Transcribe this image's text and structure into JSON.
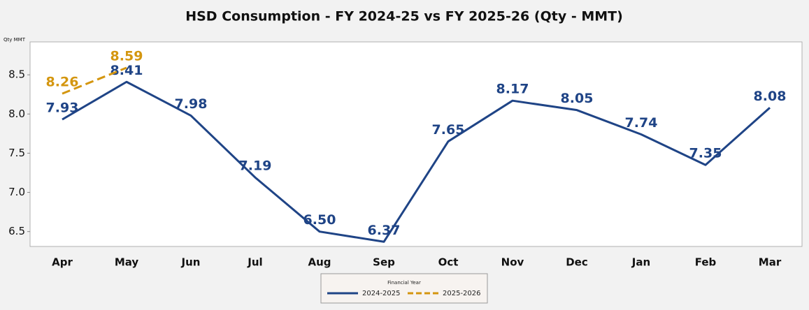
{
  "chart_data": {
    "type": "line",
    "title": "HSD Consumption - FY 2024-25 vs FY 2025-26 (Qty - MMT)",
    "y_label": "Qty MMT",
    "categories": [
      "Apr",
      "May",
      "Jun",
      "Jul",
      "Aug",
      "Sep",
      "Oct",
      "Nov",
      "Dec",
      "Jan",
      "Feb",
      "Mar"
    ],
    "series": [
      {
        "name": "2024-2025",
        "color": "#1f4486",
        "line_style": "solid",
        "values": [
          7.93,
          8.41,
          7.98,
          7.19,
          6.5,
          6.37,
          7.65,
          8.17,
          8.05,
          7.74,
          7.35,
          8.08
        ],
        "value_labels": [
          "7.93",
          "8.41",
          "7.98",
          "7.19",
          "6.50",
          "6.37",
          "7.65",
          "8.17",
          "8.05",
          "7.74",
          "7.35",
          "8.08"
        ]
      },
      {
        "name": "2025-2026",
        "color": "#d4960f",
        "line_style": "dashed",
        "values": [
          8.26,
          8.59,
          null,
          null,
          null,
          null,
          null,
          null,
          null,
          null,
          null,
          null
        ],
        "value_labels": [
          "8.26",
          "8.59",
          null,
          null,
          null,
          null,
          null,
          null,
          null,
          null,
          null,
          null
        ]
      }
    ],
    "ylim": [
      6.31,
      8.92
    ],
    "yticks": [
      6.5,
      {
        "value": 7,
        "label": "7.0"
      },
      7.5,
      {
        "value": 8,
        "label": "8.0"
      },
      8.5
    ],
    "grid": false,
    "legend_title": "Financial Year",
    "legend_position": "bottom"
  }
}
